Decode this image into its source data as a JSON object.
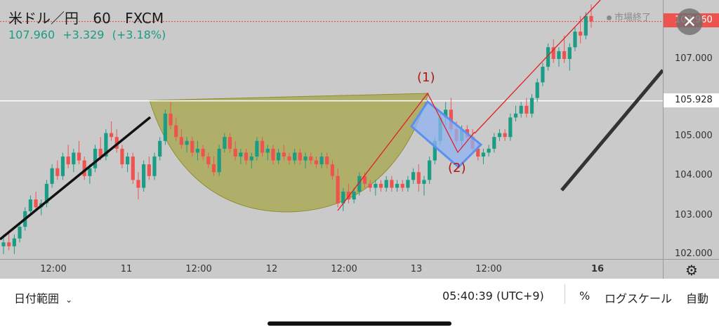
{
  "header": {
    "symbol": "米ドル／円",
    "interval": "60",
    "source": "FXCM",
    "last_price": "107.960",
    "change": "+3.329",
    "change_pct": "(+3.18%)",
    "market_status": "市場終了",
    "close_icon": "close-icon"
  },
  "price_axis": {
    "ticks": [
      "107.000",
      "105.000",
      "104.000",
      "103.000",
      "102.000"
    ],
    "horizontal_line_label": "105.928",
    "current_price_label": "107.960"
  },
  "time_axis": {
    "ticks": [
      "12:00",
      "11",
      "12:00",
      "12",
      "12:00",
      "13",
      "12:00",
      "16"
    ]
  },
  "annotations": {
    "point1": "(1)",
    "point2": "(2)"
  },
  "bottom_bar": {
    "date_range": "日付範囲",
    "clock": "05:40:39 (UTC+9)",
    "percent": "%",
    "log_scale": "ログスケール",
    "auto": "自動"
  },
  "colors": {
    "up": "#1b9c84",
    "down": "#ef5350",
    "background": "#cacaca",
    "cup_fill": "#a7a64a",
    "flag_fill": "#8fb3f0",
    "flag_stroke": "#5b8ff2",
    "trend_line": "#e02020",
    "price_line": "#ffffff"
  },
  "chart_data": {
    "type": "candlestick",
    "pair": "USD/JPY",
    "price_range": [
      102.0,
      108.2
    ],
    "levels": {
      "resistance": 105.928,
      "current": 107.96
    },
    "pattern": "cup-with-handle",
    "candles_ohlc": [
      [
        102.2,
        102.5,
        102.0,
        102.3
      ],
      [
        102.3,
        102.6,
        102.1,
        102.2
      ],
      [
        102.2,
        102.5,
        102.0,
        102.4
      ],
      [
        102.4,
        102.8,
        102.3,
        102.7
      ],
      [
        102.7,
        103.2,
        102.6,
        103.1
      ],
      [
        103.1,
        103.5,
        103.0,
        103.4
      ],
      [
        103.4,
        103.6,
        103.1,
        103.2
      ],
      [
        103.2,
        103.4,
        103.0,
        103.3
      ],
      [
        103.3,
        103.9,
        103.2,
        103.8
      ],
      [
        103.8,
        104.3,
        103.7,
        104.2
      ],
      [
        104.2,
        104.4,
        103.9,
        104.0
      ],
      [
        104.0,
        104.6,
        103.9,
        104.5
      ],
      [
        104.5,
        104.8,
        104.2,
        104.3
      ],
      [
        104.3,
        104.7,
        104.1,
        104.6
      ],
      [
        104.6,
        104.9,
        104.3,
        104.4
      ],
      [
        104.4,
        104.5,
        103.9,
        104.0
      ],
      [
        104.0,
        104.3,
        103.8,
        104.2
      ],
      [
        104.2,
        104.8,
        104.1,
        104.7
      ],
      [
        104.7,
        105.0,
        104.4,
        104.5
      ],
      [
        104.5,
        105.2,
        104.4,
        105.1
      ],
      [
        105.1,
        105.4,
        104.9,
        105.0
      ],
      [
        105.0,
        105.2,
        104.6,
        104.7
      ],
      [
        104.7,
        104.8,
        104.2,
        104.3
      ],
      [
        104.3,
        104.6,
        104.1,
        104.5
      ],
      [
        104.5,
        104.6,
        103.8,
        103.9
      ],
      [
        103.9,
        104.1,
        103.4,
        103.7
      ],
      [
        103.7,
        104.4,
        103.6,
        104.3
      ],
      [
        104.3,
        104.5,
        103.9,
        104.0
      ],
      [
        104.0,
        104.6,
        103.9,
        104.5
      ],
      [
        104.5,
        105.0,
        104.4,
        104.9
      ],
      [
        104.9,
        105.7,
        104.8,
        105.6
      ],
      [
        105.6,
        105.9,
        105.2,
        105.3
      ],
      [
        105.3,
        105.5,
        104.9,
        105.0
      ],
      [
        105.0,
        105.2,
        104.7,
        104.8
      ],
      [
        104.8,
        105.0,
        104.6,
        104.9
      ],
      [
        104.9,
        105.0,
        104.5,
        104.6
      ],
      [
        104.6,
        104.9,
        104.4,
        104.7
      ],
      [
        104.7,
        104.8,
        104.4,
        104.5
      ],
      [
        104.5,
        104.6,
        104.2,
        104.3
      ],
      [
        104.3,
        104.5,
        104.0,
        104.1
      ],
      [
        104.1,
        104.8,
        104.0,
        104.7
      ],
      [
        104.7,
        105.1,
        104.6,
        105.0
      ],
      [
        105.0,
        105.1,
        104.6,
        104.7
      ],
      [
        104.7,
        104.9,
        104.4,
        104.5
      ],
      [
        104.5,
        104.7,
        104.3,
        104.6
      ],
      [
        104.6,
        104.7,
        104.3,
        104.4
      ],
      [
        104.4,
        104.6,
        104.2,
        104.5
      ],
      [
        104.5,
        105.0,
        104.4,
        104.9
      ],
      [
        104.9,
        105.0,
        104.5,
        104.6
      ],
      [
        104.6,
        104.8,
        104.4,
        104.7
      ],
      [
        104.7,
        104.8,
        104.3,
        104.4
      ],
      [
        104.4,
        104.7,
        104.3,
        104.6
      ],
      [
        104.6,
        104.8,
        104.4,
        104.5
      ],
      [
        104.5,
        104.6,
        104.3,
        104.4
      ],
      [
        104.4,
        104.7,
        104.3,
        104.6
      ],
      [
        104.6,
        104.7,
        104.3,
        104.4
      ],
      [
        104.4,
        104.6,
        104.2,
        104.5
      ],
      [
        104.5,
        104.6,
        104.3,
        104.4
      ],
      [
        104.4,
        104.5,
        104.2,
        104.3
      ],
      [
        104.3,
        104.6,
        104.2,
        104.5
      ],
      [
        104.5,
        104.6,
        104.2,
        104.3
      ],
      [
        104.3,
        104.4,
        103.9,
        104.0
      ],
      [
        104.0,
        104.2,
        103.2,
        103.3
      ],
      [
        103.3,
        103.7,
        103.1,
        103.6
      ],
      [
        103.6,
        103.8,
        103.3,
        103.4
      ],
      [
        103.4,
        103.7,
        103.3,
        103.6
      ],
      [
        103.6,
        104.1,
        103.5,
        104.0
      ],
      [
        104.0,
        104.1,
        103.7,
        103.8
      ],
      [
        103.8,
        103.9,
        103.6,
        103.7
      ],
      [
        103.7,
        103.9,
        103.5,
        103.8
      ],
      [
        103.8,
        103.9,
        103.6,
        103.7
      ],
      [
        103.7,
        104.0,
        103.6,
        103.9
      ],
      [
        103.9,
        104.0,
        103.6,
        103.7
      ],
      [
        103.7,
        103.9,
        103.6,
        103.8
      ],
      [
        103.8,
        103.9,
        103.6,
        103.7
      ],
      [
        103.7,
        104.0,
        103.6,
        103.9
      ],
      [
        103.9,
        104.2,
        103.8,
        104.1
      ],
      [
        104.1,
        104.3,
        103.6,
        103.8
      ],
      [
        103.8,
        104.0,
        103.5,
        103.9
      ],
      [
        103.9,
        104.5,
        103.8,
        104.4
      ],
      [
        104.4,
        105.0,
        104.3,
        104.9
      ],
      [
        104.9,
        105.6,
        104.8,
        105.5
      ],
      [
        105.5,
        105.9,
        105.3,
        105.7
      ],
      [
        105.7,
        106.0,
        105.1,
        105.2
      ],
      [
        105.2,
        105.4,
        104.8,
        104.9
      ],
      [
        104.9,
        105.3,
        104.7,
        105.2
      ],
      [
        105.2,
        105.3,
        104.9,
        105.0
      ],
      [
        105.0,
        105.2,
        104.6,
        104.7
      ],
      [
        104.7,
        104.9,
        104.4,
        104.5
      ],
      [
        104.5,
        104.7,
        104.3,
        104.6
      ],
      [
        104.6,
        104.8,
        104.5,
        104.7
      ],
      [
        104.7,
        105.1,
        104.6,
        105.0
      ],
      [
        105.0,
        105.2,
        104.9,
        105.1
      ],
      [
        105.1,
        105.2,
        104.9,
        105.0
      ],
      [
        105.0,
        105.6,
        104.9,
        105.5
      ],
      [
        105.5,
        105.8,
        105.4,
        105.6
      ],
      [
        105.6,
        105.9,
        105.5,
        105.8
      ],
      [
        105.8,
        106.0,
        105.5,
        105.6
      ],
      [
        105.6,
        106.1,
        105.5,
        106.0
      ],
      [
        106.0,
        106.5,
        105.9,
        106.4
      ],
      [
        106.4,
        106.9,
        106.3,
        106.8
      ],
      [
        106.8,
        107.4,
        106.7,
        107.3
      ],
      [
        107.3,
        107.5,
        106.9,
        107.0
      ],
      [
        107.0,
        107.3,
        106.8,
        107.2
      ],
      [
        107.2,
        107.6,
        106.9,
        107.0
      ],
      [
        107.0,
        107.4,
        106.7,
        107.3
      ],
      [
        107.3,
        107.8,
        107.2,
        107.7
      ],
      [
        107.7,
        108.1,
        107.4,
        107.6
      ],
      [
        107.6,
        108.2,
        107.5,
        108.1
      ],
      [
        108.1,
        108.4,
        107.8,
        107.96
      ]
    ]
  }
}
